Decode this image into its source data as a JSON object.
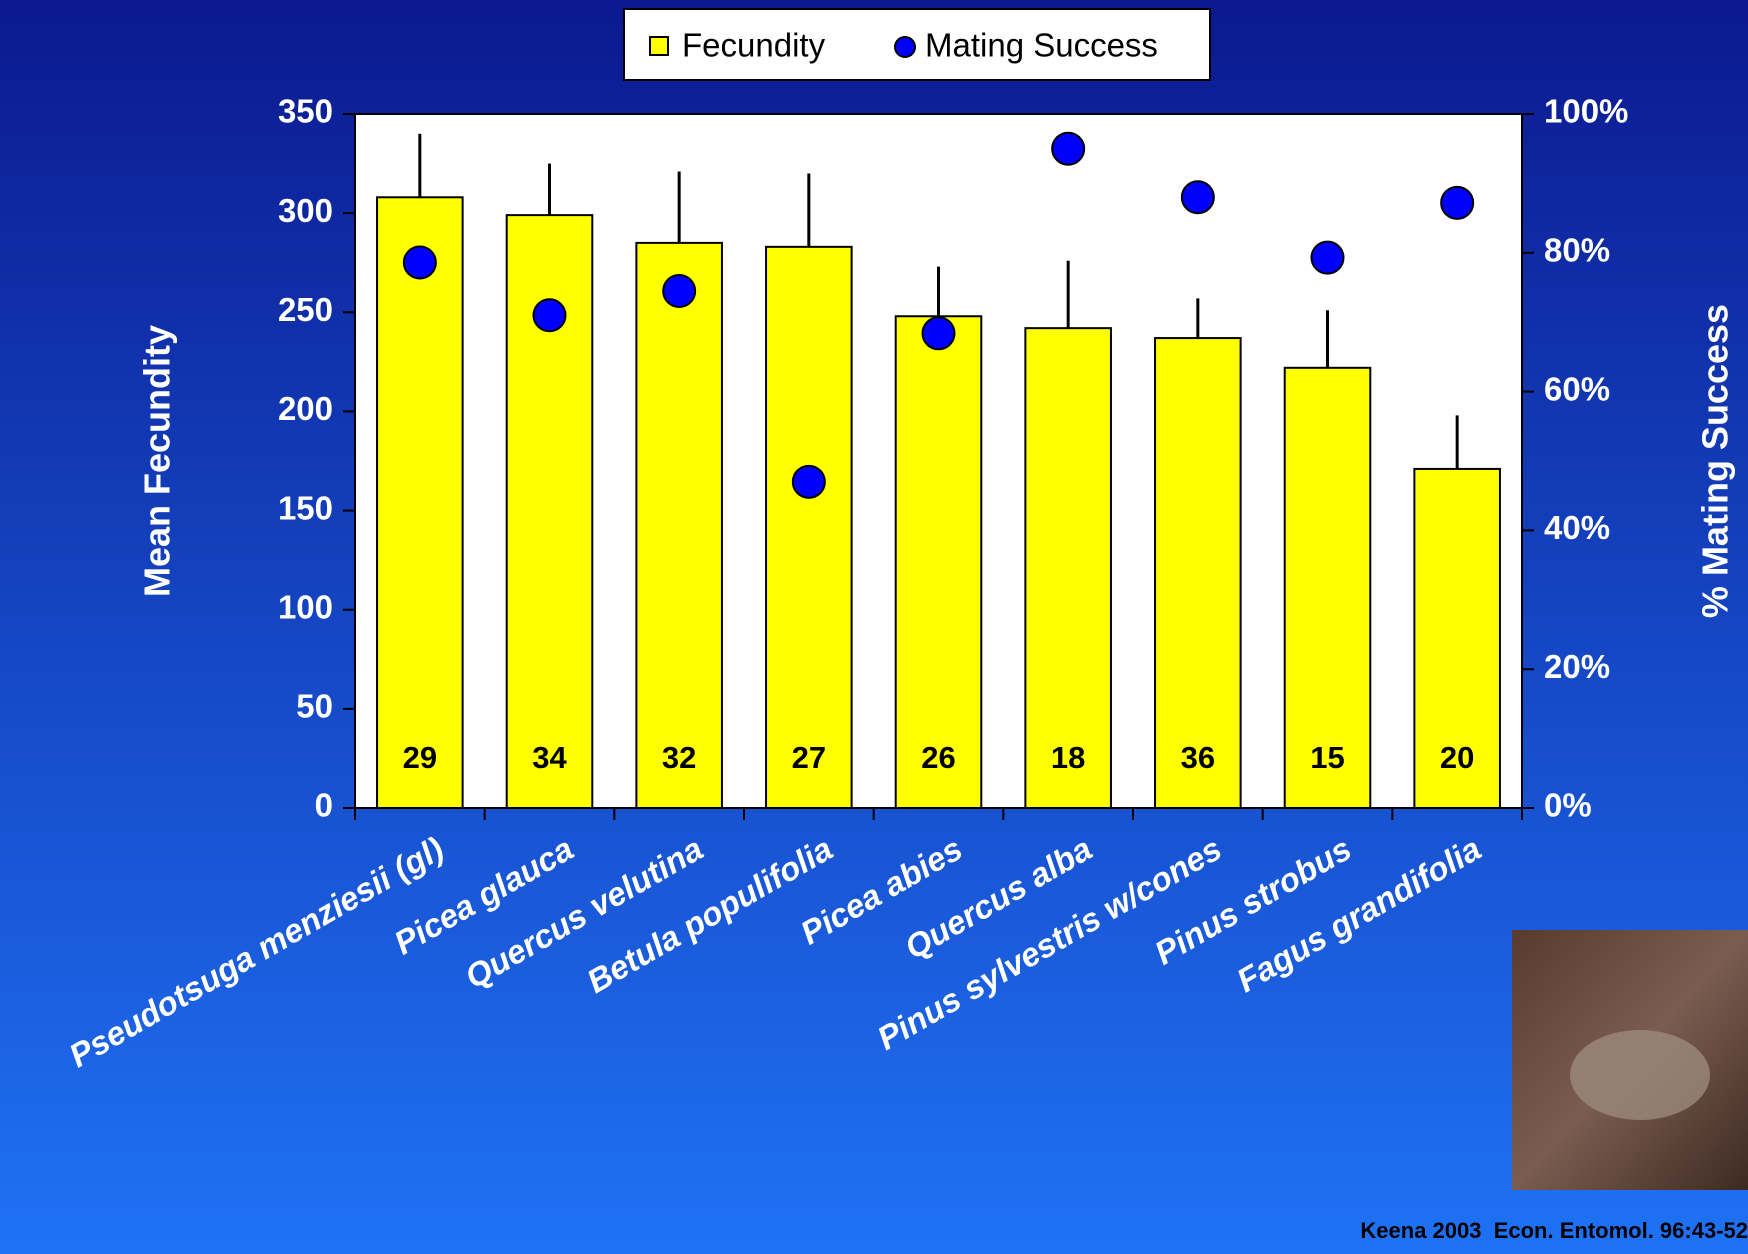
{
  "chart_data": {
    "type": "bar",
    "categories": [
      "Pseudotsuga menziesii (gl)",
      "Picea glauca",
      "Quercus velutina",
      "Betula populifolia",
      "Picea abies",
      "Quercus alba",
      "Pinus sylvestris w/cones",
      "Pinus strobus",
      "Fagus grandifolia"
    ],
    "series": [
      {
        "name": "Fecundity",
        "type": "bar",
        "color": "#ffff00",
        "values": [
          308,
          299,
          285,
          283,
          248,
          242,
          237,
          222,
          171
        ],
        "errors": [
          32,
          26,
          36,
          37,
          25,
          34,
          20,
          29,
          27
        ],
        "n": [
          29,
          34,
          32,
          27,
          26,
          18,
          36,
          15,
          20
        ]
      },
      {
        "name": "Mating Success",
        "type": "scatter",
        "color": "#0000ff",
        "axis": "y2",
        "values": [
          78.6,
          71,
          74.5,
          47,
          68.4,
          95,
          88,
          79.3,
          87.2
        ]
      }
    ],
    "y_label": "Mean Fecundity",
    "y2_label": "% Mating Success",
    "ylim": [
      0,
      350
    ],
    "yticks": [
      0,
      50,
      100,
      150,
      200,
      250,
      300,
      350
    ],
    "y2lim": [
      0,
      100
    ],
    "y2ticks": [
      {
        "value": 0,
        "label": "0%"
      },
      {
        "value": 20,
        "label": "20%"
      },
      {
        "value": 40,
        "label": "40%"
      },
      {
        "value": 60,
        "label": "60%"
      },
      {
        "value": 80,
        "label": "80%"
      },
      {
        "value": 100,
        "label": "100%"
      }
    ],
    "legend": "top",
    "citation": "Keena 2003  Econ. Entomol. 96:43-52"
  }
}
